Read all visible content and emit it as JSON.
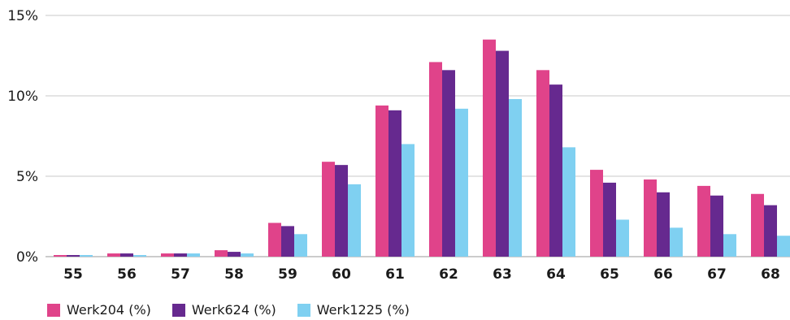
{
  "chart_data": {
    "type": "bar",
    "categories": [
      "55",
      "56",
      "57",
      "58",
      "59",
      "60",
      "61",
      "62",
      "63",
      "64",
      "65",
      "66",
      "67",
      "68"
    ],
    "series": [
      {
        "name": "Werk204 (%)",
        "color": "#e0438a",
        "values": [
          0.1,
          0.2,
          0.2,
          0.4,
          2.1,
          5.9,
          9.4,
          12.1,
          13.5,
          11.6,
          5.4,
          4.8,
          4.4,
          3.9
        ]
      },
      {
        "name": "Werk624 (%)",
        "color": "#66298f",
        "values": [
          0.1,
          0.2,
          0.2,
          0.3,
          1.9,
          5.7,
          9.1,
          11.6,
          12.8,
          10.7,
          4.6,
          4.0,
          3.8,
          3.2
        ]
      },
      {
        "name": "Werk1225 (%)",
        "color": "#7fd0f1",
        "values": [
          0.1,
          0.1,
          0.2,
          0.2,
          1.4,
          4.5,
          7.0,
          9.2,
          9.8,
          6.8,
          2.3,
          1.8,
          1.4,
          1.3
        ]
      }
    ],
    "yticks": [
      0,
      5,
      10,
      15
    ],
    "ytick_labels": [
      "0%",
      "5%",
      "10%",
      "15%"
    ],
    "ylim": [
      0,
      15
    ],
    "grid": true,
    "legend_position": "bottom-left"
  }
}
